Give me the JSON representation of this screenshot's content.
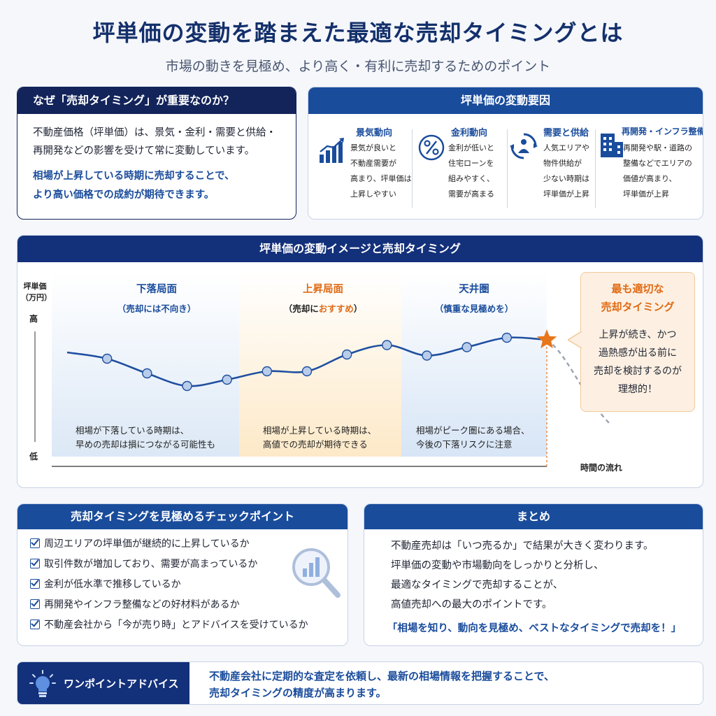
{
  "header": {
    "title": "坪単価の変動を踏まえた最適な売却タイミングとは",
    "subtitle": "市場の動きを見極め、より高く・有利に売却するためのポイント"
  },
  "why": {
    "heading": "なぜ「売却タイミング」が重要なのか？",
    "body": [
      "不動産価格（坪単価）は、景気・金利・需要と供給・",
      "再開発などの影響を受けて常に変動しています。"
    ],
    "emphasis": [
      "相場が上昇している時期に売却することで、",
      "より高い価格での成約が期待できます。"
    ]
  },
  "factors": {
    "heading": "坪単価の変動要因",
    "items": [
      {
        "name": "景気動向",
        "icon": "bar-chart-up-icon",
        "lines": [
          "景気が良いと",
          "不動産需要が",
          "高まり、坪単価は",
          "上昇しやすい"
        ]
      },
      {
        "name": "金利動向",
        "icon": "percent-icon",
        "lines": [
          "金利が低いと",
          "住宅ローンを",
          "組みやすく、",
          "需要が高まる"
        ]
      },
      {
        "name": "需要と供給",
        "icon": "supply-demand-icon",
        "lines": [
          "人気エリアや",
          "物件供給が",
          "少ない時期は",
          "坪単価が上昇"
        ]
      },
      {
        "name": "再開発・インフラ整備",
        "icon": "building-icon",
        "lines": [
          "再開発や駅・道路の",
          "整備などでエリアの",
          "価値が高まり、",
          "坪単価が上昇"
        ]
      }
    ]
  },
  "chart_section": {
    "heading": "坪単価の変動イメージと売却タイミング",
    "y_label": [
      "坪単価",
      "（万円）"
    ],
    "y_high": "高",
    "y_low": "低",
    "x_label": "時間の流れ",
    "phases": [
      {
        "title": "下落局面",
        "sub": "（売却には不向き）",
        "note": [
          "相場が下落している時期は、",
          "早めの売却は損につながる可能性も"
        ]
      },
      {
        "title": "上昇局面",
        "sub_pre": "（売却に",
        "sub_hl": "おすすめ",
        "sub_post": "）",
        "note": [
          "相場が上昇している時期は、",
          "高値での売却が期待できる"
        ]
      },
      {
        "title": "天井圏",
        "sub": "（慎重な見極めを）",
        "note": [
          "相場がピーク圏にある場合、",
          "今後の下落リスクに注意"
        ]
      }
    ],
    "callout": {
      "title": [
        "最も適切な",
        "売却タイミング"
      ],
      "body": [
        "上昇が続き、かつ",
        "過熱感が出る前に",
        "売却を検討するのが",
        "理想的！"
      ]
    }
  },
  "chart_data": {
    "type": "line",
    "title": "坪単価の変動イメージと売却タイミング",
    "xlabel": "時間の流れ",
    "ylabel": "坪単価（万円）",
    "ylim": [
      0,
      100
    ],
    "y_tick_labels": [
      "低",
      "高"
    ],
    "series": [
      {
        "values": [
          72,
          66,
          52,
          40,
          46,
          54,
          54,
          70,
          79,
          69,
          77,
          86,
          84
        ]
      }
    ],
    "x": [
      0,
      1,
      2,
      3,
      4,
      5,
      6,
      7,
      8,
      9,
      10,
      11,
      12
    ],
    "markers_at": [
      1,
      2,
      3,
      4,
      5,
      6,
      7,
      8,
      9,
      10,
      11
    ],
    "optimal_point_index": 12,
    "phase_labels": [
      "下落局面",
      "上昇局面",
      "天井圏"
    ],
    "grid": false,
    "colors": {
      "line": "#1f4fa0",
      "forecast": "#9aa3b0",
      "star": "#e8761a"
    }
  },
  "checkpoints": {
    "heading": "売却タイミングを見極めるチェックポイント",
    "items": [
      "周辺エリアの坪単価が継続的に上昇しているか",
      "取引件数が増加しており、需要が高まっているか",
      "金利が低水準で推移しているか",
      "再開発やインフラ整備などの好材料があるか",
      "不動産会社から「今が売り時」とアドバイスを受けているか"
    ]
  },
  "summary": {
    "heading": "まとめ",
    "body": [
      "不動産売却は「いつ売るか」で結果が大きく変わります。",
      "坪単価の変動や市場動向をしっかりと分析し、",
      "最適なタイミングで売却することが、",
      "高値売却への最大のポイントです。"
    ],
    "emphasis": "「相場を知り、動向を見極め、ベストなタイミングで売却を！」"
  },
  "advice": {
    "tag": "ワンポイントアドバイス",
    "lines": [
      "不動産会社に定期的な査定を依頼し、最新の相場情報を把握することで、",
      "売却タイミングの精度が高まります。"
    ]
  }
}
